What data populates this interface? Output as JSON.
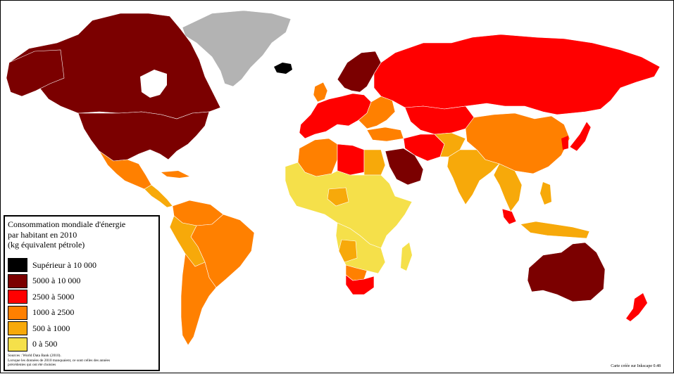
{
  "map": {
    "title_lines": [
      "Consommation mondiale d'énergie",
      "par habitant en 2010",
      "(kg équivalent pétrole)"
    ],
    "legend": [
      {
        "label": "Supérieur à 10 000",
        "color": "#000000"
      },
      {
        "label": "5000 à 10 000",
        "color": "#7b0000"
      },
      {
        "label": "2500 à 5000",
        "color": "#ff0000"
      },
      {
        "label": "1000 à 2500",
        "color": "#ff8000"
      },
      {
        "label": "500 à 1000",
        "color": "#f7a90a"
      },
      {
        "label": "0 à 500",
        "color": "#f5e04a"
      }
    ],
    "source_lines": [
      "Sources : World Data Bank (2010).",
      "Lorsque les données de 2010 manquaient, ce sont celles des années",
      "précédentes qui ont été choisies"
    ],
    "credit": "Carte créée sur Inkscape 0.48",
    "no_data_color": "#b3b3b3"
  }
}
